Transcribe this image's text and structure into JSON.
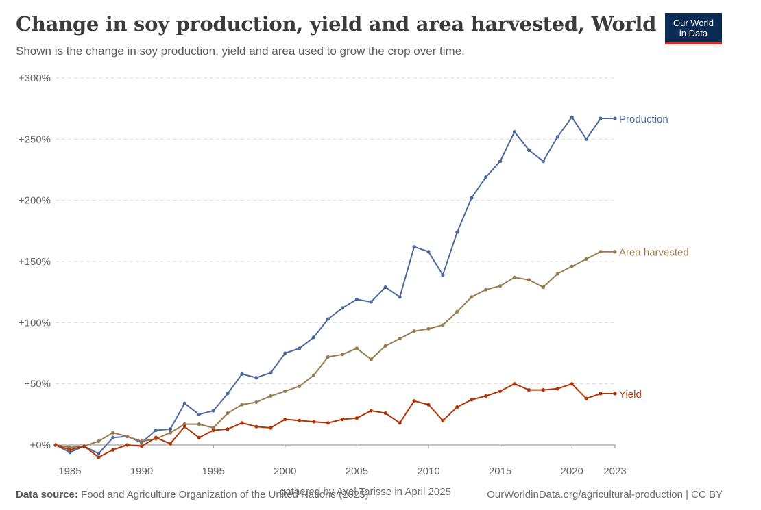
{
  "header": {
    "title": "Change in soy production, yield and area harvested, World",
    "subtitle": "Shown is the change in soy production, yield and area used to grow the crop over time.",
    "logo_line1": "Our World",
    "logo_line2": "in Data"
  },
  "footer": {
    "source_label": "Data source:",
    "source_text": "Food and Agriculture Organization of the United Nations (2025)",
    "note": "gathered by Axel Tarisse in April 2025",
    "url": "OurWorldinData.org/agricultural-production | CC BY"
  },
  "chart_data": {
    "type": "line",
    "title": "Change in soy production, yield and area harvested, World",
    "ylim": [
      0,
      300
    ],
    "yticks": [
      0,
      50,
      100,
      150,
      200,
      250,
      300
    ],
    "ytick_labels": [
      "+0%",
      "+50%",
      "+100%",
      "+150%",
      "+200%",
      "+250%",
      "+300%"
    ],
    "xlim": [
      1984,
      2023
    ],
    "xticks": [
      1985,
      1990,
      1995,
      2000,
      2005,
      2010,
      2015,
      2020,
      2023
    ],
    "xtick_labels": [
      "1985",
      "1990",
      "1995",
      "2000",
      "2005",
      "2010",
      "2015",
      "2020",
      "2023"
    ],
    "grid": true,
    "x": [
      1984,
      1985,
      1986,
      1987,
      1988,
      1989,
      1990,
      1991,
      1992,
      1993,
      1994,
      1995,
      1996,
      1997,
      1998,
      1999,
      2000,
      2001,
      2002,
      2003,
      2004,
      2005,
      2006,
      2007,
      2008,
      2009,
      2010,
      2011,
      2012,
      2013,
      2014,
      2015,
      2016,
      2017,
      2018,
      2019,
      2020,
      2021,
      2022,
      2023
    ],
    "series": [
      {
        "name": "Production",
        "color": "#4c6a9c",
        "values": [
          0,
          -6,
          -1,
          -7,
          6,
          7,
          2,
          12,
          13,
          34,
          25,
          28,
          42,
          58,
          55,
          59,
          75,
          79,
          88,
          103,
          112,
          119,
          117,
          129,
          121,
          162,
          158,
          139,
          174,
          202,
          219,
          232,
          256,
          241,
          232,
          252,
          268,
          250,
          267,
          267
        ]
      },
      {
        "name": "Area harvested",
        "color": "#9a7b4f",
        "values": [
          0,
          -2,
          -1,
          3,
          10,
          7,
          3,
          5,
          10,
          17,
          17,
          14,
          26,
          33,
          35,
          40,
          44,
          48,
          57,
          72,
          74,
          79,
          70,
          81,
          87,
          93,
          95,
          98,
          109,
          121,
          127,
          130,
          137,
          135,
          129,
          140,
          146,
          152,
          158,
          158
        ]
      },
      {
        "name": "Yield",
        "color": "#b13507",
        "values": [
          0,
          -4,
          -1,
          -10,
          -4,
          0,
          -1,
          6,
          1,
          15,
          6,
          12,
          13,
          18,
          15,
          14,
          21,
          20,
          19,
          18,
          21,
          22,
          28,
          26,
          18,
          36,
          33,
          20,
          31,
          37,
          40,
          44,
          50,
          45,
          45,
          46,
          50,
          38,
          42,
          42
        ]
      }
    ]
  }
}
